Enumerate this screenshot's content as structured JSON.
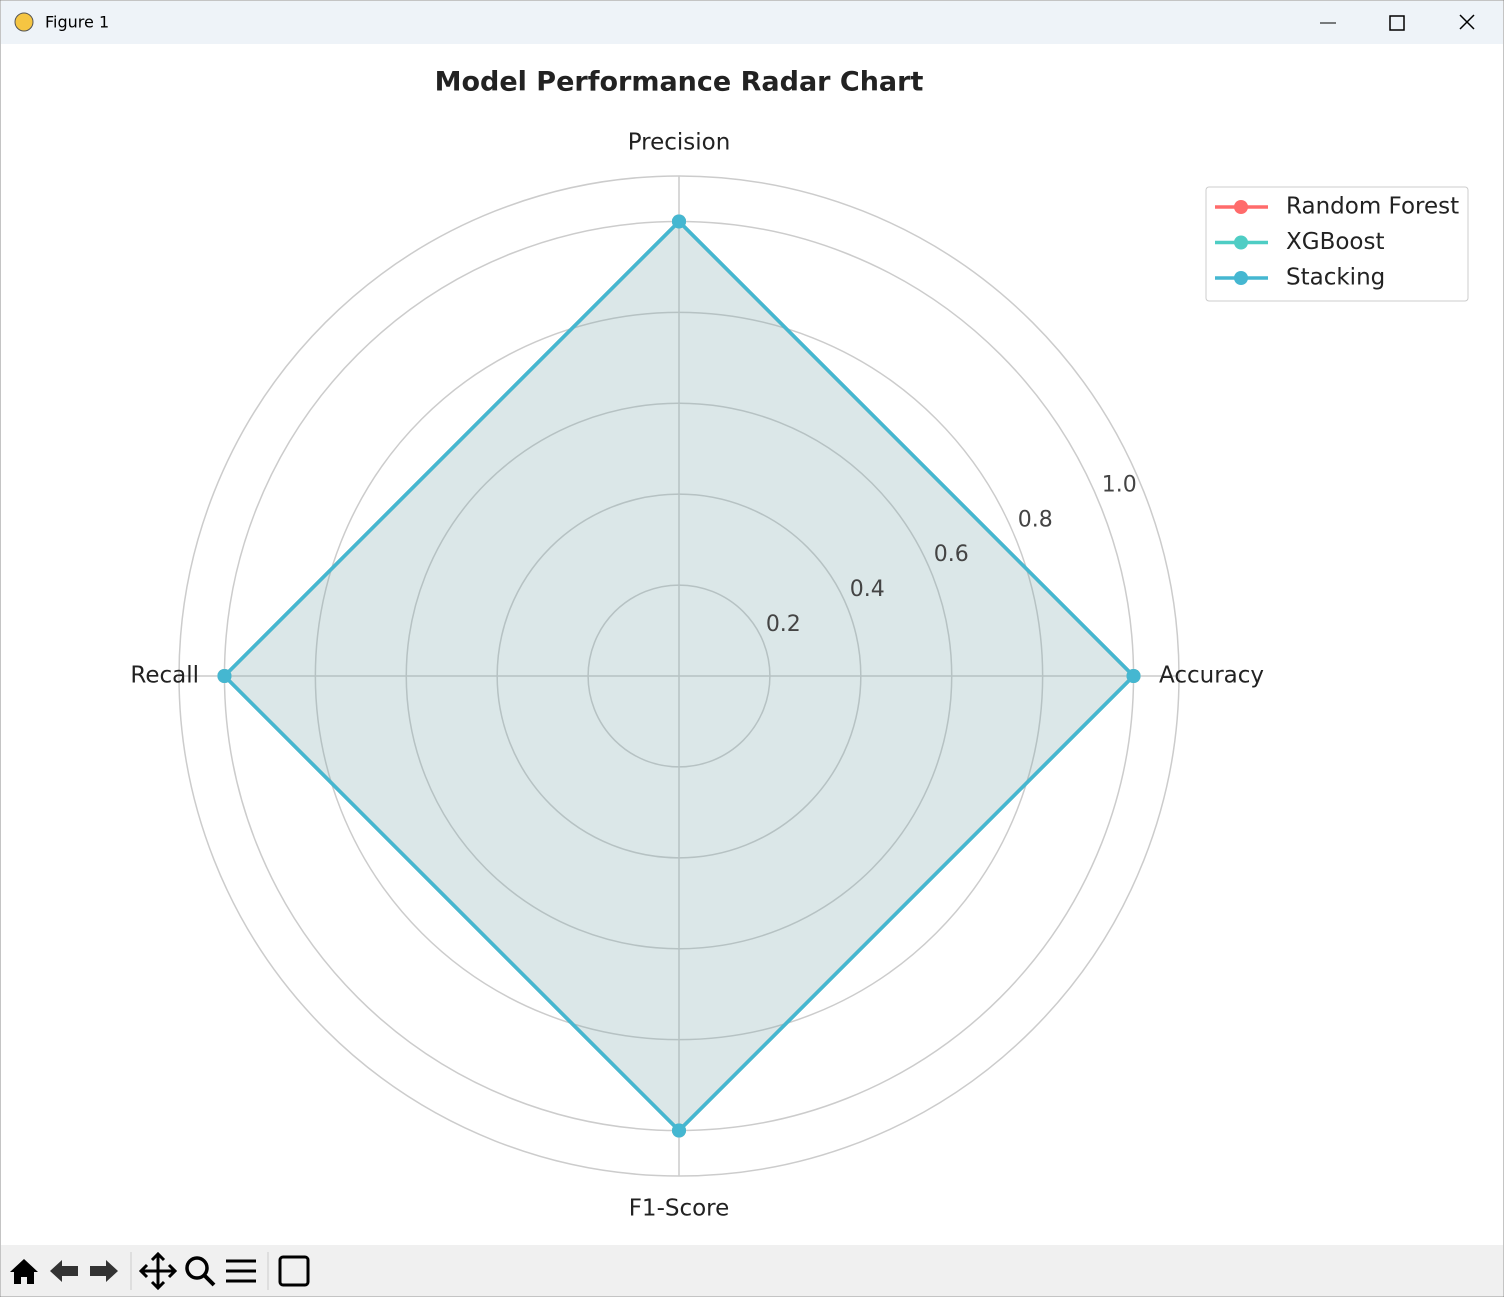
{
  "window": {
    "title": "Figure 1"
  },
  "chart_data": {
    "type": "radar",
    "title": "Model Performance Radar Chart",
    "categories": [
      "Accuracy",
      "Precision",
      "Recall",
      "F1-Score"
    ],
    "series": [
      {
        "name": "Random Forest",
        "color": "#ff6b6b",
        "values": [
          1.0,
          1.0,
          1.0,
          1.0
        ]
      },
      {
        "name": "XGBoost",
        "color": "#4ecdc4",
        "values": [
          1.0,
          1.0,
          1.0,
          1.0
        ]
      },
      {
        "name": "Stacking",
        "color": "#45b7d1",
        "values": [
          1.0,
          1.0,
          1.0,
          1.0
        ]
      }
    ],
    "ylim": [
      0,
      1.1
    ],
    "yticks": [
      0.2,
      0.4,
      0.6,
      0.8,
      {
        "value": 1,
        "label": "1.0"
      }
    ],
    "grid": true,
    "legend": "upper right"
  }
}
